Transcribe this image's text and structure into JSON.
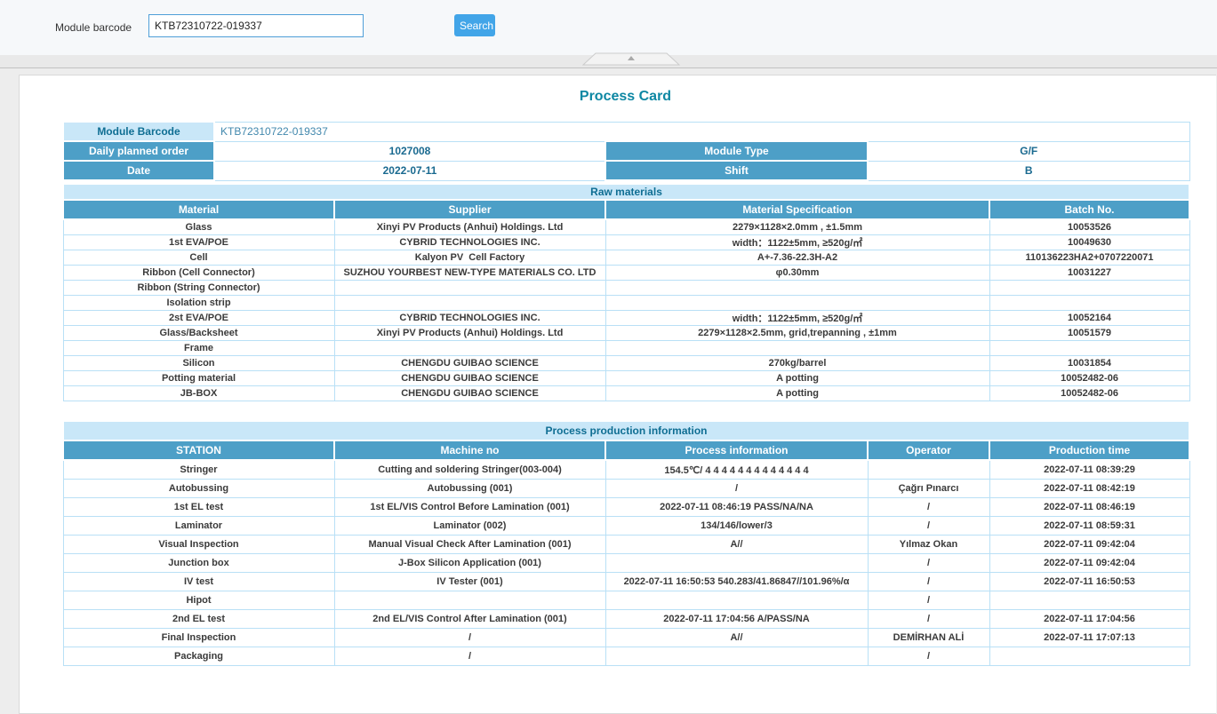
{
  "topbar": {
    "label": "Module barcode",
    "input_value": "KTB72310722-019337",
    "search_label": "Search"
  },
  "page": {
    "title": "Process Card"
  },
  "module_info": {
    "barcode_label": "Module Barcode",
    "barcode_value": "KTB72310722-019337",
    "daily_order_label": "Daily planned order",
    "daily_order_value": "1027008",
    "module_type_label": "Module Type",
    "module_type_value": "G/F",
    "date_label": "Date",
    "date_value": "2022-07-11",
    "shift_label": "Shift",
    "shift_value": "B"
  },
  "raw_materials": {
    "section_title": "Raw materials",
    "columns": [
      "Material",
      "Supplier",
      "Material Specification",
      "Batch No."
    ],
    "rows": [
      [
        "Glass",
        "Xinyi PV Products (Anhui) Holdings. Ltd",
        "2279×1128×2.0mm , ±1.5mm",
        "10053526"
      ],
      [
        "1st EVA/POE",
        "CYBRID TECHNOLOGIES INC.",
        "width：1122±5mm, ≥520g/㎡",
        "10049630"
      ],
      [
        "Cell",
        "Kalyon PV  Cell Factory",
        "A+-7.36-22.3H-A2",
        "110136223HA2+0707220071"
      ],
      [
        "Ribbon (Cell Connector)",
        "SUZHOU YOURBEST NEW-TYPE MATERIALS CO. LTD",
        "φ0.30mm",
        "10031227"
      ],
      [
        "Ribbon (String Connector)",
        "",
        "",
        ""
      ],
      [
        "Isolation strip",
        "",
        "",
        ""
      ],
      [
        "2st EVA/POE",
        "CYBRID TECHNOLOGIES INC.",
        "width：1122±5mm, ≥520g/㎡",
        "10052164"
      ],
      [
        "Glass/Backsheet",
        "Xinyi PV Products (Anhui) Holdings. Ltd",
        "2279×1128×2.5mm, grid,trepanning , ±1mm",
        "10051579"
      ],
      [
        "Frame",
        "",
        "",
        ""
      ],
      [
        "Silicon",
        "CHENGDU GUIBAO SCIENCE",
        "270kg/barrel",
        "10031854"
      ],
      [
        "Potting material",
        "CHENGDU GUIBAO SCIENCE",
        "A potting",
        "10052482-06"
      ],
      [
        "JB-BOX",
        "CHENGDU GUIBAO SCIENCE",
        "A potting",
        "10052482-06"
      ]
    ]
  },
  "process_info": {
    "section_title": "Process production information",
    "columns": [
      "STATION",
      "Machine no",
      "Process information",
      "Operator",
      "Production time"
    ],
    "rows": [
      [
        "Stringer",
        "Cutting and soldering Stringer(003-004)",
        "154.5℃/ 4 4 4 4 4 4 4 4 4 4 4 4 4",
        "",
        "2022-07-11 08:39:29"
      ],
      [
        "Autobussing",
        "Autobussing (001)",
        "/",
        "Çağrı Pınarcı",
        "2022-07-11 08:42:19"
      ],
      [
        "1st EL test",
        "1st EL/VIS Control Before Lamination (001)",
        "2022-07-11 08:46:19 PASS/NA/NA",
        "/",
        "2022-07-11 08:46:19"
      ],
      [
        "Laminator",
        "Laminator (002)",
        "134/146/lower/3",
        "/",
        "2022-07-11 08:59:31"
      ],
      [
        "Visual Inspection",
        "Manual Visual Check After Lamination (001)",
        "A//",
        "Yılmaz Okan",
        "2022-07-11 09:42:04"
      ],
      [
        "Junction box",
        "J-Box Silicon Application (001)",
        "",
        "/",
        "2022-07-11 09:42:04"
      ],
      [
        "IV test",
        "IV Tester (001)",
        "2022-07-11 16:50:53 540.283/41.86847//101.96%/α",
        "/",
        "2022-07-11 16:50:53"
      ],
      [
        "Hipot",
        "",
        "",
        "/",
        ""
      ],
      [
        "2nd EL test",
        "2nd EL/VIS Control After Lamination (001)",
        "2022-07-11 17:04:56 A/PASS/NA",
        "/",
        "2022-07-11 17:04:56"
      ],
      [
        "Final Inspection",
        "/",
        "A//",
        "DEMİRHAN ALİ",
        "2022-07-11 17:07:13"
      ],
      [
        "Packaging",
        "/",
        "",
        "/",
        ""
      ]
    ]
  },
  "colors": {
    "header_steel_blue": "#4d9fc7",
    "band_light_blue": "#c9e7f8",
    "title_teal": "#0d87a3",
    "value_teal": "#1a6a90",
    "search_button_blue": "#42a5e8",
    "table_border_blue": "#b9e0f6"
  }
}
